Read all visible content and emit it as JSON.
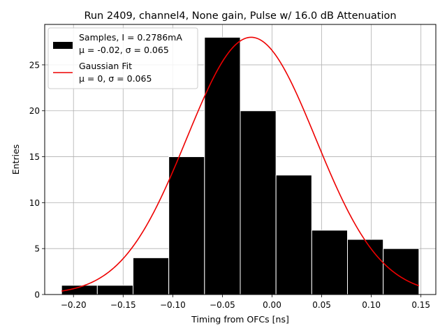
{
  "chart_data": {
    "type": "bar",
    "title": "Run 2409, channel4, None gain, Pulse w/ 16.0 dB Attenuation",
    "xlabel": "Timing from OFCs [ns]",
    "ylabel": "Entries",
    "xlim": [
      -0.229,
      0.165
    ],
    "ylim": [
      0,
      29.4
    ],
    "xticks": [
      -0.2,
      -0.15,
      -0.1,
      -0.05,
      0.0,
      0.05,
      0.1,
      0.15
    ],
    "xtick_labels": [
      "−0.20",
      "−0.15",
      "−0.10",
      "−0.05",
      "0.00",
      "0.05",
      "0.10",
      "0.15"
    ],
    "yticks": [
      0,
      5,
      10,
      15,
      20,
      25
    ],
    "ytick_labels": [
      "0",
      "5",
      "10",
      "15",
      "20",
      "25"
    ],
    "grid": true,
    "legend_position": "top-left",
    "histogram": {
      "name": "Samples, I = 0.2786mA",
      "stats": "μ = -0.02, σ = 0.065",
      "color": "#000000",
      "edge_color": "#ffffff",
      "bins": [
        {
          "x0": -0.212,
          "x1": -0.176,
          "value": 1
        },
        {
          "x0": -0.176,
          "x1": -0.14,
          "value": 1
        },
        {
          "x0": -0.14,
          "x1": -0.104,
          "value": 4
        },
        {
          "x0": -0.104,
          "x1": -0.068,
          "value": 15
        },
        {
          "x0": -0.068,
          "x1": -0.032,
          "value": 28
        },
        {
          "x0": -0.032,
          "x1": 0.004,
          "value": 20
        },
        {
          "x0": 0.004,
          "x1": 0.04,
          "value": 13
        },
        {
          "x0": 0.04,
          "x1": 0.076,
          "value": 7
        },
        {
          "x0": 0.076,
          "x1": 0.112,
          "value": 6
        },
        {
          "x0": 0.112,
          "x1": 0.148,
          "value": 5
        }
      ]
    },
    "fit": {
      "name": "Gaussian Fit",
      "stats": "μ = 0, σ = 0.065",
      "color": "#ee0000",
      "x_range": [
        -0.212,
        0.148
      ],
      "amplitude": 28.0,
      "mean": -0.021,
      "sigma": 0.065
    }
  }
}
